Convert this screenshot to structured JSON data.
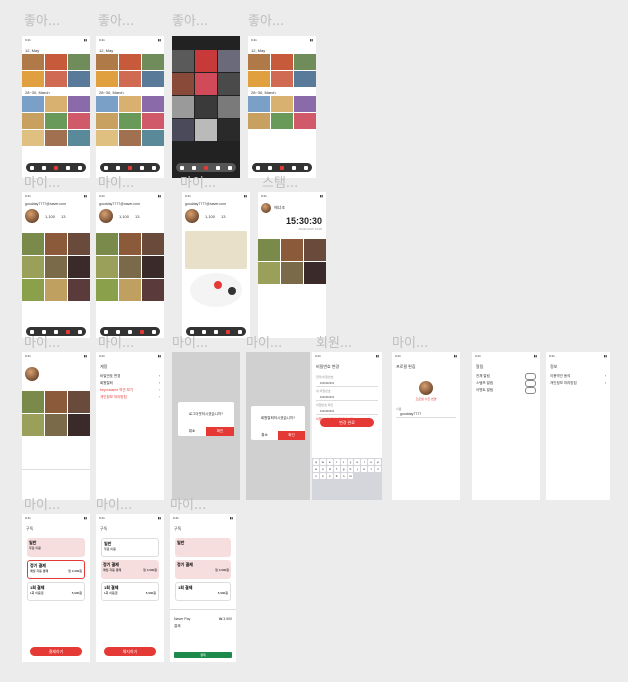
{
  "labels": {
    "like": "좋아...",
    "my": "마이...",
    "member": "회원...",
    "stamp": "스탬..."
  },
  "status_time": "9:41",
  "gallery": {
    "date1": "12, May",
    "date2": "28~30, March",
    "more": "See all"
  },
  "profile": {
    "email": "goodday7777@naver.com",
    "count1": "1,100",
    "count2": "13",
    "count1_label": "게시물",
    "count2_label": "스탬프"
  },
  "stamp": {
    "title": "에너조",
    "time": "15:30:30",
    "date": "2024/12/25 14:05"
  },
  "settings": {
    "title": "계정",
    "items": [
      "비밀번호 변경",
      "회원탈퇴",
      "beyondame 약관 보기",
      "개인정보 처리방침"
    ],
    "version": "beyondame 1.0.0"
  },
  "modal": {
    "logout": "로그아웃하시겠습니까?",
    "delete": "회원탈퇴하시겠습니까?",
    "cancel": "취소",
    "ok": "확인"
  },
  "password": {
    "title": "비밀번호 변경",
    "current": "현재 비밀번호",
    "new": "새 비밀번호",
    "confirm": "비밀번호 확인",
    "masked": "••••••••••",
    "error": "비밀번호가 일치하지 않습니다",
    "submit": "변경 완료"
  },
  "profile_edit": {
    "title": "프로필 편집",
    "change_photo": "프로필 사진 변경",
    "name_label": "이름",
    "name": "goodday7777"
  },
  "alarm": {
    "title": "알림",
    "items": [
      "전체 알림",
      "스탬프 알림",
      "이벤트 알림"
    ]
  },
  "info": {
    "title": "정보",
    "items": [
      "이용약관 동의",
      "개인정보 처리방침"
    ]
  },
  "subscribe": {
    "title": "구독",
    "plans": [
      {
        "name": "일반",
        "desc": "무료 이용"
      },
      {
        "name": "정기 결제",
        "desc": "매월 자동 결제",
        "price": "월 3,900원"
      },
      {
        "name": "1회 결제",
        "desc": "1회 이용권",
        "price": "5,900원"
      }
    ],
    "button": "결제하기",
    "cancel_button": "해지하기"
  },
  "payment": {
    "method": "Naver Pay",
    "amount": "₩ 3,900",
    "total": "결제",
    "pay_button": "결제"
  },
  "keyboard": [
    "q",
    "w",
    "e",
    "r",
    "t",
    "y",
    "u",
    "i",
    "o",
    "p",
    "a",
    "s",
    "d",
    "f",
    "g",
    "h",
    "j",
    "k",
    "l",
    "z",
    "x",
    "c",
    "v",
    "b",
    "n",
    "m"
  ],
  "colors": {
    "accent": "#e53935",
    "nav": "#333333",
    "pink": "#f6dede"
  }
}
